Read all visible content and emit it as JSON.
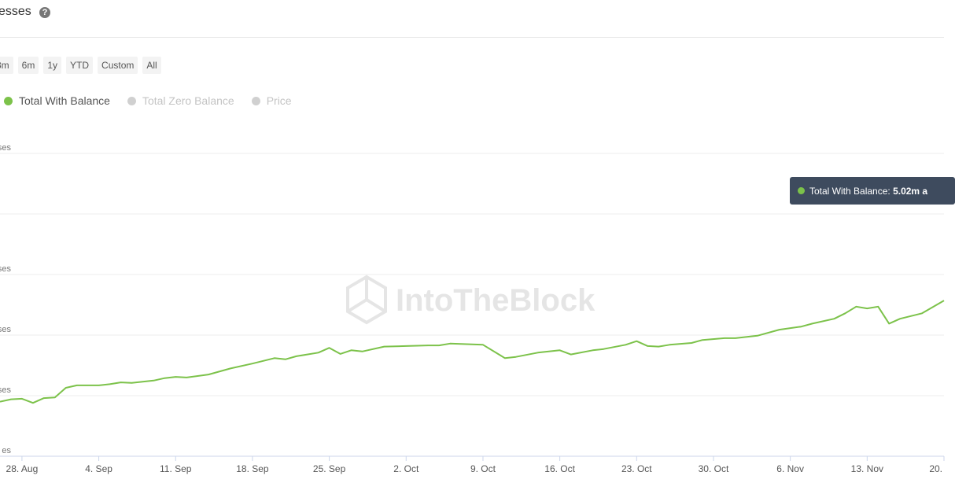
{
  "chart_data": {
    "type": "line",
    "title": "esses",
    "range_buttons": [
      "3m",
      "6m",
      "1y",
      "YTD",
      "Custom",
      "All"
    ],
    "x": [
      0,
      1,
      2,
      3,
      4,
      5,
      6,
      7,
      9,
      10,
      11,
      12,
      14,
      15,
      16,
      17,
      19,
      21,
      23,
      25,
      26,
      27,
      29,
      30,
      31,
      32,
      33,
      35,
      37,
      39,
      40,
      41,
      44,
      46,
      47,
      49,
      51,
      52,
      54,
      55,
      57,
      58,
      59,
      60,
      61,
      63,
      64,
      66,
      67,
      69,
      71,
      73,
      74,
      76,
      77,
      78,
      79,
      80,
      81,
      82,
      84,
      86
    ],
    "series": [
      {
        "name": "Total With Balance",
        "color": "#7cc24a",
        "values": [
          4.79,
          4.794,
          4.795,
          4.788,
          4.796,
          4.797,
          4.813,
          4.817,
          4.817,
          4.819,
          4.822,
          4.821,
          4.825,
          4.829,
          4.831,
          4.83,
          4.835,
          4.845,
          4.853,
          4.862,
          4.86,
          4.865,
          4.871,
          4.879,
          4.869,
          4.875,
          4.873,
          4.881,
          4.882,
          4.883,
          4.883,
          4.886,
          4.884,
          4.862,
          4.864,
          4.871,
          4.875,
          4.868,
          4.875,
          4.877,
          4.884,
          4.89,
          4.882,
          4.881,
          4.884,
          4.887,
          4.892,
          4.895,
          4.895,
          4.899,
          4.909,
          4.914,
          4.919,
          4.927,
          4.936,
          4.947,
          4.944,
          4.947,
          4.919,
          4.927,
          4.936,
          4.957
        ]
      }
    ],
    "legend_hidden": [
      "Total Zero Balance",
      "Price"
    ],
    "xlim": [
      0,
      86
    ],
    "xticks": [
      {
        "value": 2,
        "label": "28. Aug"
      },
      {
        "value": 9,
        "label": "4. Sep"
      },
      {
        "value": 16,
        "label": "11. Sep"
      },
      {
        "value": 23,
        "label": "18. Sep"
      },
      {
        "value": 30,
        "label": "25. Sep"
      },
      {
        "value": 37,
        "label": "2. Oct"
      },
      {
        "value": 44,
        "label": "9. Oct"
      },
      {
        "value": 51,
        "label": "16. Oct"
      },
      {
        "value": 58,
        "label": "23. Oct"
      },
      {
        "value": 65,
        "label": "30. Oct"
      },
      {
        "value": 72,
        "label": "6. Nov"
      },
      {
        "value": 79,
        "label": "13. Nov"
      },
      {
        "value": 86,
        "label": "20."
      }
    ],
    "ylim": [
      4.7,
      5.2
    ],
    "yticks": [
      {
        "value": 4.7,
        "label": "es"
      },
      {
        "value": 4.8,
        "label": "sses"
      },
      {
        "value": 4.9,
        "label": "sses"
      },
      {
        "value": 5.0,
        "label": "sses"
      },
      5.1,
      {
        "value": 5.2,
        "label": "sses"
      }
    ],
    "grid": true,
    "tooltip": {
      "label": "Total With Balance:",
      "value": "5.02m a"
    },
    "watermark": "IntoTheBlock"
  }
}
